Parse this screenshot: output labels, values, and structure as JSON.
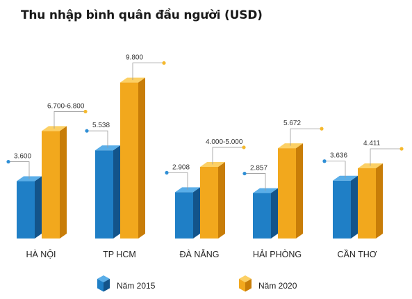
{
  "chart_data": {
    "type": "bar",
    "title": "Thu nhập bình quân đầu người (USD)",
    "categories": [
      "HÀ NỘI",
      "TP HCM",
      "ĐÀ NẴNG",
      "HẢI PHÒNG",
      "CẦN THƠ"
    ],
    "series": [
      {
        "name": "Năm 2015",
        "values": [
          3600,
          5538,
          2908,
          2857,
          3636
        ],
        "labels": [
          "3.600",
          "5.538",
          "2.908",
          "2.857",
          "3.636"
        ],
        "color": "#1f7fc6",
        "side_color": "#13548a",
        "top_color": "#5aaee8",
        "dot_color": "#2f8fd6"
      },
      {
        "name": "Năm 2020",
        "values": [
          6750,
          9800,
          4500,
          5672,
          4411
        ],
        "labels": [
          "6.700-6.800",
          "9.800",
          "4.000-5.000",
          "5.672",
          "4.411"
        ],
        "color": "#f2a81d",
        "side_color": "#c87d08",
        "top_color": "#fcd065",
        "dot_color": "#f5b92e"
      }
    ],
    "ylim": [
      0,
      10000
    ],
    "legend_position": "bottom",
    "grid": false,
    "style": "3d-column"
  }
}
